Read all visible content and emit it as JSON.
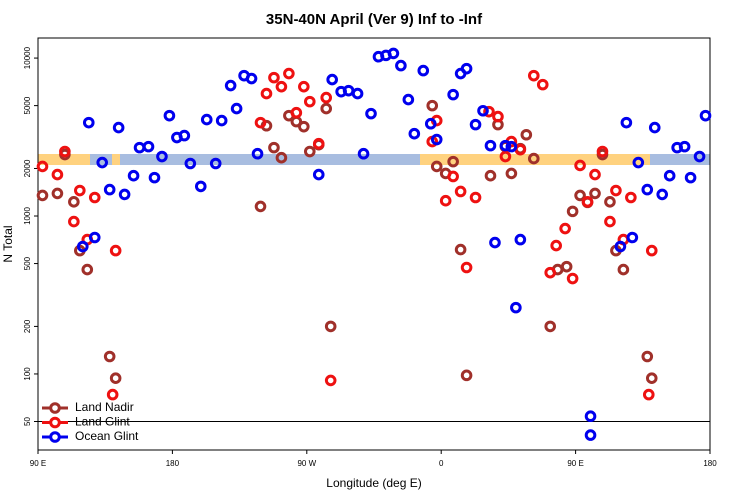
{
  "chart_data": {
    "type": "scatter",
    "title": "35N-40N April (Ver 9)   Inf to -Inf",
    "x_label": "Longitude (deg E)",
    "y_label": "N Total",
    "log_y": true,
    "legend": "bottom-left",
    "hline": 50,
    "xlim": [
      90,
      540
    ],
    "xticks": [
      {
        "value": 90,
        "label": "90 E"
      },
      180,
      {
        "value": 270,
        "label": "90 W"
      },
      {
        "value": 360,
        "label": "0"
      },
      {
        "value": 450,
        "label": "90 E"
      },
      {
        "value": 540,
        "label": "180"
      }
    ],
    "ylim": [
      33,
      13400
    ],
    "yticks": [
      50,
      100,
      200,
      500,
      1000,
      2000,
      5000,
      10000
    ],
    "series": [
      {
        "name": "Land Nadir",
        "color": "#a0302a",
        "x": [
          93,
          103,
          108,
          114,
          118,
          123,
          138,
          142,
          239,
          243,
          248,
          253,
          258,
          263,
          268,
          272,
          278,
          283,
          286,
          354,
          357,
          363,
          368,
          373,
          377,
          393,
          398,
          403,
          407,
          413,
          417,
          422,
          433,
          438,
          444,
          448,
          453,
          458,
          463,
          468,
          473,
          477,
          482,
          498,
          501
        ],
        "values": [
          1350,
          1390,
          2450,
          1230,
          604,
          458,
          129,
          94,
          1150,
          3730,
          2710,
          2340,
          4320,
          3960,
          3680,
          2560,
          2830,
          4790,
          200,
          5000,
          2060,
          1860,
          2210,
          613,
          98,
          1800,
          3790,
          2750,
          1860,
          2670,
          3270,
          2310,
          200,
          458,
          478,
          1070,
          1350,
          1220,
          1390,
          2450,
          1230,
          604,
          458,
          129,
          94
        ]
      },
      {
        "name": "Land Glint",
        "color": "#ee1111",
        "x": [
          93,
          103,
          108,
          114,
          118,
          123,
          128,
          140,
          142,
          239,
          243,
          248,
          253,
          258,
          263,
          268,
          272,
          278,
          283,
          286,
          354,
          357,
          363,
          368,
          373,
          377,
          383,
          392,
          398,
          403,
          407,
          413,
          422,
          428,
          433,
          437,
          443,
          448,
          453,
          458,
          463,
          468,
          473,
          477,
          482,
          487,
          499,
          501
        ],
        "values": [
          2060,
          1830,
          2560,
          922,
          1450,
          709,
          1310,
          74,
          604,
          3900,
          5960,
          7520,
          6590,
          7980,
          4510,
          6590,
          5300,
          2870,
          5620,
          91,
          2960,
          4020,
          1250,
          1780,
          1430,
          472,
          1310,
          4580,
          4260,
          2380,
          2960,
          2630,
          7740,
          6790,
          438,
          650,
          833,
          402,
          2090,
          1230,
          1830,
          2560,
          922,
          1450,
          709,
          1310,
          74,
          604
        ]
      },
      {
        "name": "Ocean Glint",
        "color": "#0000ee",
        "x": [
          124,
          120,
          128,
          133,
          138,
          144,
          148,
          154,
          158,
          164,
          168,
          173,
          178,
          183,
          188,
          192,
          199,
          203,
          209,
          213,
          219,
          223,
          228,
          233,
          237,
          278,
          287,
          293,
          298,
          304,
          308,
          313,
          318,
          323,
          328,
          333,
          338,
          342,
          348,
          353,
          357,
          368,
          373,
          377,
          383,
          388,
          393,
          396,
          403,
          407,
          410,
          413,
          460,
          460,
          480,
          484,
          488,
          492,
          498,
          503,
          508,
          513,
          518,
          523,
          527,
          533,
          537
        ],
        "values": [
          3900,
          641,
          731,
          2180,
          1470,
          3630,
          1370,
          1800,
          2710,
          2750,
          1750,
          2380,
          4320,
          3140,
          3230,
          2150,
          1540,
          4080,
          2150,
          4020,
          6700,
          4790,
          7740,
          7420,
          2480,
          1830,
          7310,
          6130,
          6220,
          5960,
          2480,
          4450,
          10200,
          10400,
          10700,
          8960,
          5460,
          3320,
          8330,
          3840,
          3050,
          5870,
          7980,
          8570,
          3790,
          4640,
          2790,
          679,
          2790,
          2750,
          263,
          709,
          54,
          41,
          641,
          3900,
          731,
          2180,
          1470,
          3630,
          1370,
          1800,
          2710,
          2750,
          1750,
          2380,
          4320
        ]
      }
    ]
  }
}
